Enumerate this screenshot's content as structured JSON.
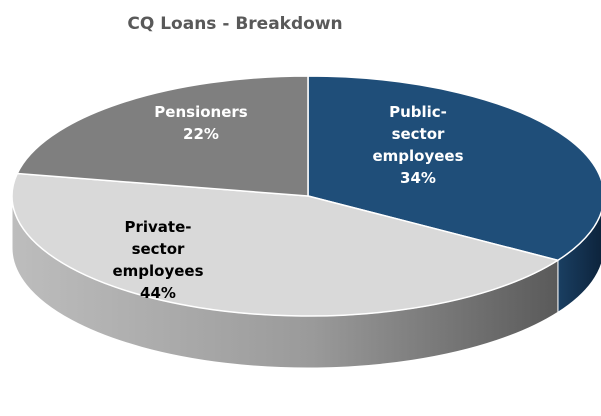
{
  "chart_data": {
    "type": "pie",
    "title": "CQ Loans - Breakdown",
    "three_d": true,
    "slices": [
      {
        "label_lines": [
          "Public-",
          "sector",
          "employees"
        ],
        "percent_label": "34%",
        "value": 34,
        "color": "#1f4e79",
        "side_color": "#0f2c48",
        "text_color": "#ffffff"
      },
      {
        "label_lines": [
          "Private-",
          "sector",
          "employees"
        ],
        "percent_label": "44%",
        "value": 44,
        "color": "#d9d9d9",
        "side_color": "#8c8c8c",
        "text_color": "#000000"
      },
      {
        "label_lines": [
          "Pensioners"
        ],
        "percent_label": "22%",
        "value": 22,
        "color": "#7f7f7f",
        "side_color": "#4d4d4d",
        "text_color": "#ffffff"
      }
    ]
  }
}
